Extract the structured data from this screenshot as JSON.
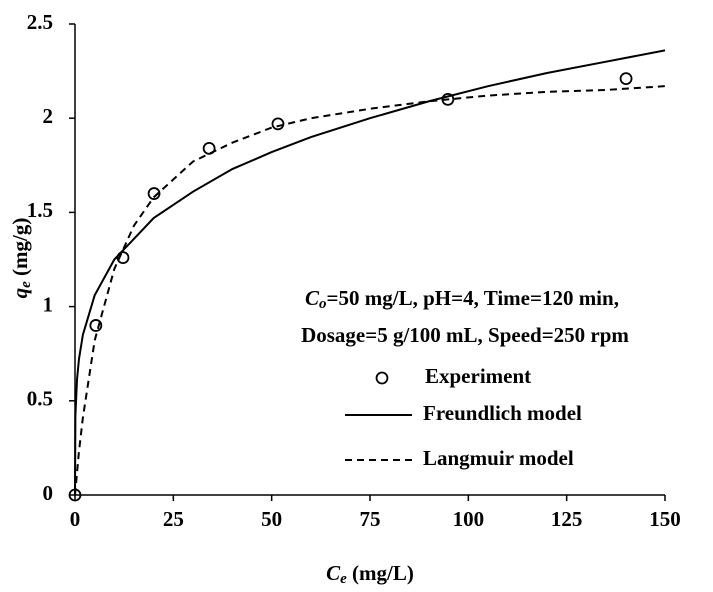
{
  "chart_data": {
    "type": "scatter-line",
    "x_label": {
      "symbol": "C",
      "subscript": "e",
      "unit": " (mg/L)"
    },
    "y_label": {
      "symbol": "q",
      "subscript": "e",
      "unit": " (mg/g)"
    },
    "annotation": [
      {
        "symbol": "C",
        "subscript": "o",
        "text": "=50 mg/L, pH=4, Time=120 min,"
      },
      {
        "text": "Dosage=5 g/100 mL, Speed=250 rpm"
      }
    ],
    "xlim": [
      0,
      150
    ],
    "xticks": [
      0,
      25,
      50,
      75,
      100,
      125,
      150
    ],
    "ylim": [
      0,
      2.5
    ],
    "yticks": [
      0,
      0.5,
      1,
      1.5,
      2,
      2.5
    ],
    "series": [
      {
        "name": "Experiment",
        "style": "marker",
        "color": "#000000",
        "x": [
          0,
          5.3,
          12.2,
          20.1,
          34.1,
          51.6,
          94.8,
          140.1
        ],
        "values": [
          0,
          0.9,
          1.26,
          1.6,
          1.84,
          1.97,
          2.1,
          2.21
        ]
      },
      {
        "name": "Freundlich model",
        "style": "solid",
        "color": "#000000",
        "x": [
          0,
          0.1,
          0.5,
          1,
          2,
          5,
          10,
          20,
          30,
          40,
          50,
          60,
          75,
          90,
          105,
          120,
          135,
          150
        ],
        "values": [
          0,
          0.42,
          0.61,
          0.72,
          0.85,
          1.06,
          1.25,
          1.47,
          1.61,
          1.73,
          1.82,
          1.9,
          2.0,
          2.09,
          2.17,
          2.24,
          2.3,
          2.36
        ]
      },
      {
        "name": "Langmuir model",
        "style": "dashed",
        "color": "#000000",
        "x": [
          0,
          1,
          2,
          5,
          10,
          15,
          20,
          30,
          40,
          50,
          60,
          75,
          90,
          105,
          120,
          135,
          150
        ],
        "values": [
          0,
          0.23,
          0.41,
          0.82,
          1.2,
          1.43,
          1.58,
          1.77,
          1.87,
          1.95,
          2.0,
          2.05,
          2.09,
          2.12,
          2.14,
          2.15,
          2.17
        ]
      }
    ]
  }
}
